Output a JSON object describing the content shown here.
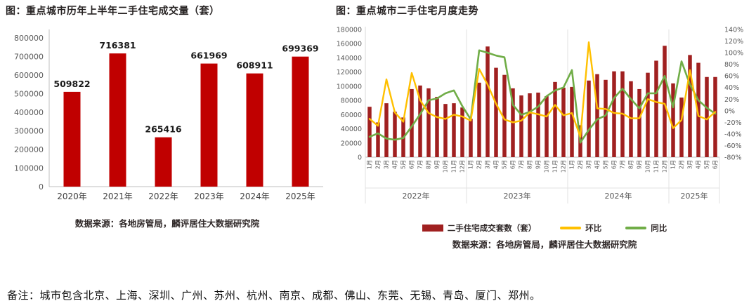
{
  "page": {
    "note": "备注：城市包含北京、上海、深圳、广州、苏州、杭州、南京、成都、佛山、东莞、无锡、青岛、厦门、郑州。"
  },
  "colors": {
    "left_bar": "#C00000",
    "monthly_bar": "#A02020",
    "mom_line": "#FFC000",
    "yoy_line": "#70AD47",
    "axis_text": "#595959",
    "label_text": "#1a1a1a",
    "x_label_text": "#404040",
    "axis_line": "#BFBFBF",
    "grid_line": "#E2E2E2"
  },
  "chart_data": [
    {
      "type": "bar",
      "title": "图：重点城市历年上半年二手住宅成交量（套）",
      "categories": [
        "2020年",
        "2021年",
        "2022年",
        "2023年",
        "2024年",
        "2025年"
      ],
      "values": [
        509822,
        716381,
        265416,
        661969,
        608911,
        699369
      ],
      "data_labels": [
        "509822",
        "716381",
        "265416",
        "661969",
        "608911",
        "699369"
      ],
      "ylim": [
        0,
        800000
      ],
      "yticks": [
        0,
        100000,
        200000,
        300000,
        400000,
        500000,
        600000,
        700000,
        800000
      ],
      "grid": false,
      "source": "数据来源：各地房管局，麟评居住大数据研究院"
    },
    {
      "type": "bar+line",
      "title": "图：重点城市二手住宅月度走势",
      "year_groups": [
        {
          "label": "2022年",
          "count": 12
        },
        {
          "label": "2023年",
          "count": 12
        },
        {
          "label": "2024年",
          "count": 12
        },
        {
          "label": "2025年",
          "count": 6
        }
      ],
      "categories": [
        "1月",
        "2月",
        "3月",
        "4月",
        "5月",
        "6月",
        "7月",
        "8月",
        "9月",
        "10月",
        "11月",
        "12月",
        "1月",
        "2月",
        "3月",
        "4月",
        "5月",
        "6月",
        "7月",
        "8月",
        "9月",
        "10月",
        "11月",
        "12月",
        "1月",
        "2月",
        "3月",
        "4月",
        "5月",
        "6月",
        "7月",
        "8月",
        "9月",
        "10月",
        "11月",
        "12月",
        "1月",
        "2月",
        "3月",
        "4月",
        "5月",
        "6月"
      ],
      "series": [
        {
          "name": "二手住宅成交套数（套）",
          "type": "bar",
          "axis": "left",
          "values": [
            71000,
            49000,
            76000,
            64000,
            56000,
            96000,
            101000,
            97000,
            85000,
            75000,
            76000,
            70000,
            54000,
            105000,
            156000,
            126000,
            116000,
            97000,
            87000,
            90000,
            91000,
            86000,
            106000,
            98000,
            99000,
            45000,
            108000,
            117000,
            109000,
            121000,
            121000,
            107000,
            96000,
            119000,
            136000,
            157000,
            104000,
            84000,
            144000,
            133000,
            113000,
            113000
          ]
        },
        {
          "name": "环比",
          "type": "line",
          "axis": "right",
          "unit": "%",
          "values": [
            -14,
            -26,
            54,
            -3,
            -19,
            65,
            18,
            -4,
            -11,
            -14,
            -7,
            -10,
            -17,
            72,
            45,
            12,
            -15,
            -20,
            -17,
            -3,
            -6,
            -10,
            10,
            -8,
            -4,
            -45,
            118,
            4,
            3,
            -4,
            -5,
            -13,
            -13,
            20,
            15,
            12,
            -30,
            -16,
            70,
            -9,
            -15,
            -2
          ]
        },
        {
          "name": "同比",
          "type": "line",
          "axis": "right",
          "unit": "%",
          "values": [
            -45,
            -39,
            -48,
            -50,
            -47,
            -27,
            -6,
            18,
            21,
            30,
            35,
            8,
            -15,
            104,
            100,
            95,
            92,
            10,
            -7,
            -2,
            7,
            25,
            35,
            40,
            70,
            -55,
            -33,
            -15,
            -8,
            22,
            38,
            20,
            4,
            30,
            30,
            60,
            6,
            85,
            45,
            18,
            5,
            -5
          ]
        }
      ],
      "left_axis": {
        "lim": [
          0,
          180000
        ],
        "ticks": [
          0,
          20000,
          40000,
          60000,
          80000,
          100000,
          120000,
          140000,
          160000,
          180000
        ]
      },
      "right_axis": {
        "lim": [
          -80,
          140
        ],
        "ticks": [
          140,
          120,
          100,
          80,
          60,
          40,
          20,
          0,
          -20,
          -40,
          -60,
          -80
        ]
      },
      "legend": [
        {
          "label": "二手住宅成交套数（套）",
          "type": "bar",
          "color": "#A02020"
        },
        {
          "label": "环比",
          "type": "line",
          "color": "#FFC000"
        },
        {
          "label": "同比",
          "type": "line",
          "color": "#70AD47"
        }
      ],
      "source": "数据来源：各地房管局，麟评居住大数据研究院"
    }
  ]
}
